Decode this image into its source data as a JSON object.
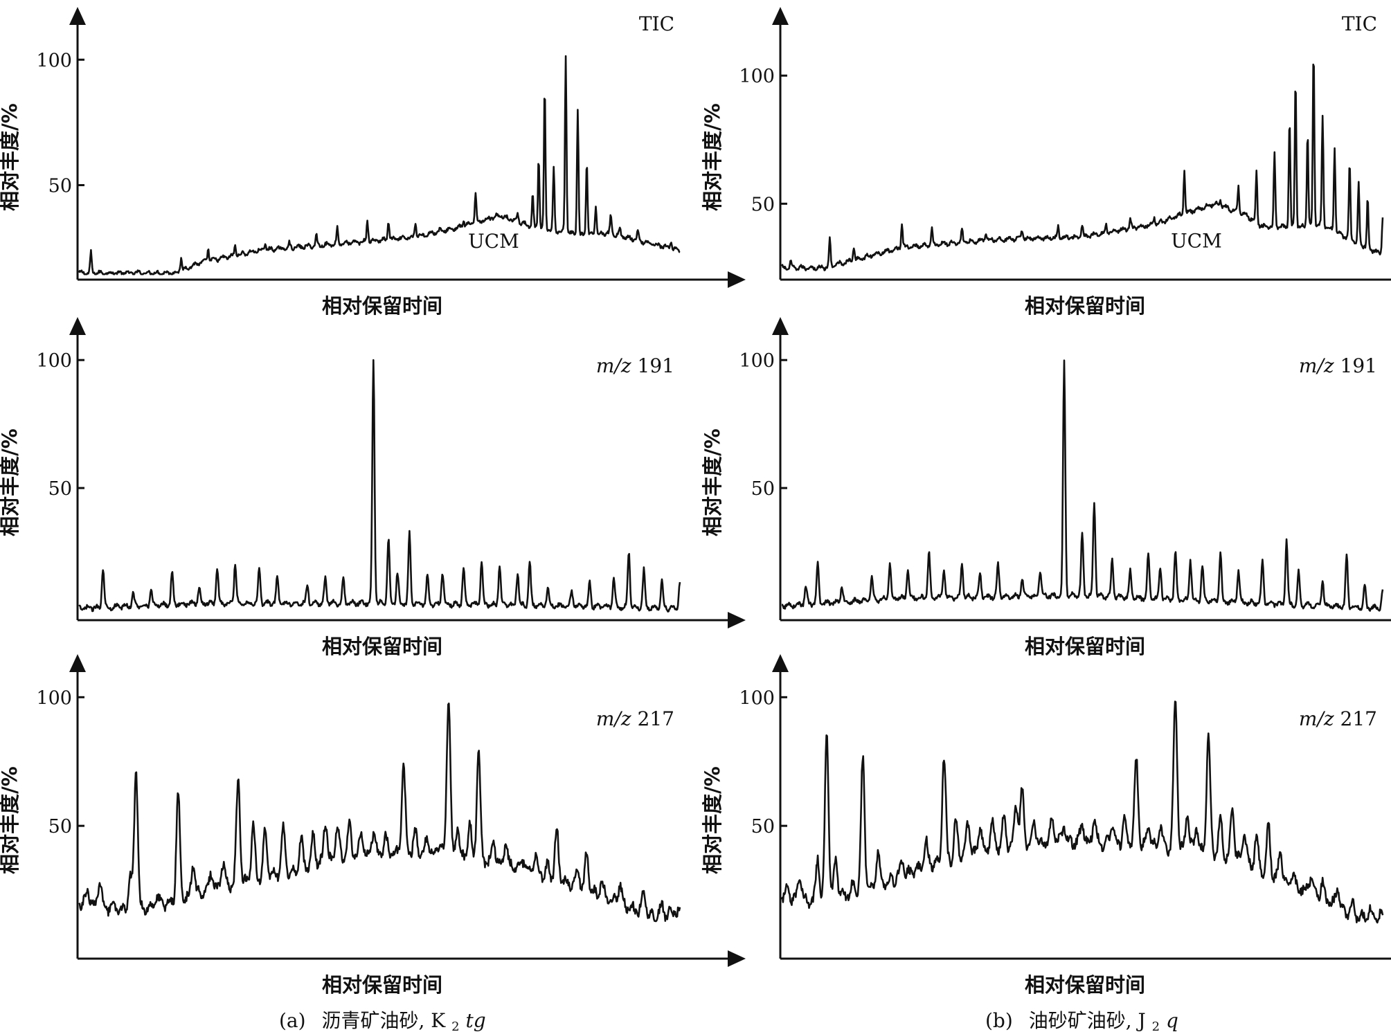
{
  "figure": {
    "captions": {
      "left": {
        "label": "(a)",
        "text": "沥青矿油砂, ",
        "formula_main": "K",
        "formula_sub": "2",
        "formula_italic": "tg"
      },
      "right": {
        "label": "(b)",
        "text": "油砂矿油砂, ",
        "formula_main": "J",
        "formula_sub": "2",
        "formula_italic": "q"
      }
    }
  },
  "chart_data": [
    {
      "id": "a-tic",
      "type": "line",
      "column": 0,
      "row": 0,
      "corner_label": "TIC",
      "corner_italic": "",
      "ylabel": "相对丰度/%",
      "xlabel": "相对保留时间",
      "yticks": [
        50,
        100
      ],
      "ylim": [
        14,
        110
      ],
      "baseline": [
        [
          0,
          15
        ],
        [
          0.16,
          15
        ],
        [
          0.2,
          19
        ],
        [
          0.3,
          24
        ],
        [
          0.45,
          27
        ],
        [
          0.55,
          29
        ],
        [
          0.63,
          33
        ],
        [
          0.7,
          38
        ],
        [
          0.76,
          33
        ],
        [
          0.84,
          30
        ],
        [
          0.88,
          31
        ],
        [
          0.93,
          28
        ],
        [
          1.0,
          24
        ]
      ],
      "peaks": [
        [
          0.02,
          23
        ],
        [
          0.17,
          21
        ],
        [
          0.215,
          25
        ],
        [
          0.26,
          26
        ],
        [
          0.31,
          27
        ],
        [
          0.35,
          27
        ],
        [
          0.395,
          30
        ],
        [
          0.43,
          33
        ],
        [
          0.48,
          36
        ],
        [
          0.515,
          36
        ],
        [
          0.56,
          35
        ],
        [
          0.6,
          32
        ],
        [
          0.64,
          36
        ],
        [
          0.66,
          47
        ],
        [
          0.705,
          37
        ],
        [
          0.73,
          39
        ],
        [
          0.755,
          46
        ],
        [
          0.765,
          61
        ],
        [
          0.775,
          89
        ],
        [
          0.79,
          57
        ],
        [
          0.81,
          102
        ],
        [
          0.83,
          80
        ],
        [
          0.845,
          60
        ],
        [
          0.86,
          42
        ],
        [
          0.885,
          38
        ],
        [
          0.9,
          33
        ],
        [
          0.93,
          32
        ],
        [
          0.985,
          28
        ]
      ],
      "annotation": "UCM",
      "annotation_x": 0.69,
      "annotation_y": 25
    },
    {
      "id": "b-tic",
      "type": "line",
      "column": 1,
      "row": 0,
      "corner_label": "TIC",
      "corner_italic": "",
      "ylabel": "相对丰度/%",
      "xlabel": "相对保留时间",
      "yticks": [
        50,
        100
      ],
      "ylim": [
        22,
        116
      ],
      "baseline": [
        [
          0,
          25
        ],
        [
          0.07,
          25
        ],
        [
          0.12,
          28
        ],
        [
          0.2,
          33
        ],
        [
          0.35,
          36
        ],
        [
          0.5,
          37
        ],
        [
          0.62,
          42
        ],
        [
          0.68,
          47
        ],
        [
          0.72,
          50
        ],
        [
          0.77,
          46
        ],
        [
          0.8,
          41
        ],
        [
          0.86,
          41
        ],
        [
          0.9,
          42
        ],
        [
          0.93,
          38
        ],
        [
          1.0,
          30
        ]
      ],
      "peaks": [
        [
          0.015,
          27
        ],
        [
          0.08,
          36
        ],
        [
          0.12,
          33
        ],
        [
          0.2,
          42
        ],
        [
          0.25,
          40
        ],
        [
          0.3,
          40
        ],
        [
          0.34,
          39
        ],
        [
          0.4,
          40
        ],
        [
          0.46,
          41
        ],
        [
          0.5,
          42
        ],
        [
          0.54,
          42
        ],
        [
          0.58,
          44
        ],
        [
          0.62,
          45
        ],
        [
          0.67,
          63
        ],
        [
          0.7,
          48
        ],
        [
          0.73,
          52
        ],
        [
          0.76,
          57
        ],
        [
          0.79,
          63
        ],
        [
          0.82,
          70
        ],
        [
          0.845,
          83
        ],
        [
          0.855,
          99
        ],
        [
          0.875,
          78
        ],
        [
          0.885,
          110
        ],
        [
          0.9,
          84
        ],
        [
          0.92,
          72
        ],
        [
          0.945,
          66
        ],
        [
          0.96,
          58
        ],
        [
          0.975,
          52
        ],
        [
          1.0,
          45
        ]
      ],
      "annotation": "UCM",
      "annotation_x": 0.69,
      "annotation_y": 33
    },
    {
      "id": "a-191",
      "type": "line",
      "column": 0,
      "row": 1,
      "corner_label": " 191",
      "corner_italic": "m/z",
      "ylabel": "相对丰度/%",
      "xlabel": "相对保留时间",
      "yticks": [
        50,
        100
      ],
      "ylim": [
        0,
        106
      ],
      "baseline": [
        [
          0,
          3
        ],
        [
          0.2,
          5
        ],
        [
          0.5,
          5
        ],
        [
          0.8,
          4
        ],
        [
          1.0,
          3
        ]
      ],
      "peaks": [
        [
          0.04,
          19
        ],
        [
          0.09,
          9
        ],
        [
          0.12,
          10
        ],
        [
          0.155,
          17
        ],
        [
          0.2,
          11
        ],
        [
          0.23,
          19
        ],
        [
          0.26,
          21
        ],
        [
          0.3,
          19
        ],
        [
          0.33,
          15
        ],
        [
          0.38,
          12
        ],
        [
          0.41,
          15
        ],
        [
          0.44,
          14
        ],
        [
          0.49,
          100
        ],
        [
          0.515,
          30
        ],
        [
          0.53,
          17
        ],
        [
          0.55,
          32
        ],
        [
          0.58,
          16
        ],
        [
          0.605,
          17
        ],
        [
          0.64,
          19
        ],
        [
          0.67,
          21
        ],
        [
          0.7,
          20
        ],
        [
          0.73,
          17
        ],
        [
          0.75,
          21
        ],
        [
          0.78,
          11
        ],
        [
          0.82,
          10
        ],
        [
          0.85,
          13
        ],
        [
          0.89,
          15
        ],
        [
          0.915,
          25
        ],
        [
          0.94,
          18
        ],
        [
          0.97,
          14
        ],
        [
          1.0,
          14
        ]
      ],
      "annotation": "",
      "annotation_x": 0,
      "annotation_y": 0
    },
    {
      "id": "b-191",
      "type": "line",
      "column": 1,
      "row": 1,
      "corner_label": " 191",
      "corner_italic": "m/z",
      "ylabel": "相对丰度/%",
      "xlabel": "相对保留时间",
      "yticks": [
        50,
        100
      ],
      "ylim": [
        0,
        106
      ],
      "baseline": [
        [
          0,
          4
        ],
        [
          0.2,
          7
        ],
        [
          0.5,
          8
        ],
        [
          0.8,
          5
        ],
        [
          1.0,
          3
        ]
      ],
      "peaks": [
        [
          0.04,
          12
        ],
        [
          0.06,
          20
        ],
        [
          0.1,
          12
        ],
        [
          0.15,
          15
        ],
        [
          0.18,
          21
        ],
        [
          0.21,
          18
        ],
        [
          0.245,
          25
        ],
        [
          0.27,
          18
        ],
        [
          0.3,
          20
        ],
        [
          0.33,
          17
        ],
        [
          0.36,
          20
        ],
        [
          0.4,
          15
        ],
        [
          0.43,
          18
        ],
        [
          0.47,
          99
        ],
        [
          0.5,
          32
        ],
        [
          0.52,
          45
        ],
        [
          0.55,
          22
        ],
        [
          0.58,
          18
        ],
        [
          0.61,
          24
        ],
        [
          0.63,
          19
        ],
        [
          0.655,
          25
        ],
        [
          0.68,
          22
        ],
        [
          0.7,
          20
        ],
        [
          0.73,
          25
        ],
        [
          0.76,
          18
        ],
        [
          0.8,
          22
        ],
        [
          0.84,
          30
        ],
        [
          0.86,
          17
        ],
        [
          0.9,
          14
        ],
        [
          0.94,
          24
        ],
        [
          0.97,
          12
        ],
        [
          1.0,
          10
        ]
      ],
      "annotation": "",
      "annotation_x": 0,
      "annotation_y": 0
    },
    {
      "id": "a-217",
      "type": "line",
      "column": 0,
      "row": 2,
      "corner_label": " 217",
      "corner_italic": "m/z",
      "ylabel": "相对丰度/%",
      "xlabel": "相对保留时间",
      "yticks": [
        50,
        100
      ],
      "ylim": [
        0,
        106
      ],
      "baseline": [
        [
          0,
          20
        ],
        [
          0.08,
          17
        ],
        [
          0.15,
          20
        ],
        [
          0.25,
          27
        ],
        [
          0.35,
          32
        ],
        [
          0.45,
          38
        ],
        [
          0.55,
          40
        ],
        [
          0.62,
          38
        ],
        [
          0.68,
          36
        ],
        [
          0.75,
          33
        ],
        [
          0.82,
          27
        ],
        [
          0.9,
          20
        ],
        [
          0.95,
          15
        ],
        [
          1.0,
          16
        ]
      ],
      "peaks": [
        [
          0.015,
          25
        ],
        [
          0.035,
          28
        ],
        [
          0.085,
          30
        ],
        [
          0.095,
          72
        ],
        [
          0.13,
          23
        ],
        [
          0.165,
          62
        ],
        [
          0.19,
          35
        ],
        [
          0.22,
          32
        ],
        [
          0.24,
          36
        ],
        [
          0.265,
          68
        ],
        [
          0.29,
          50
        ],
        [
          0.31,
          48
        ],
        [
          0.34,
          49
        ],
        [
          0.37,
          45
        ],
        [
          0.39,
          47
        ],
        [
          0.41,
          52
        ],
        [
          0.43,
          50
        ],
        [
          0.45,
          51
        ],
        [
          0.47,
          47
        ],
        [
          0.49,
          48
        ],
        [
          0.51,
          46
        ],
        [
          0.54,
          73
        ],
        [
          0.56,
          47
        ],
        [
          0.58,
          46
        ],
        [
          0.6,
          44
        ],
        [
          0.615,
          100
        ],
        [
          0.63,
          50
        ],
        [
          0.65,
          51
        ],
        [
          0.665,
          79
        ],
        [
          0.69,
          45
        ],
        [
          0.71,
          43
        ],
        [
          0.74,
          37
        ],
        [
          0.76,
          38
        ],
        [
          0.78,
          34
        ],
        [
          0.795,
          48
        ],
        [
          0.83,
          33
        ],
        [
          0.845,
          39
        ],
        [
          0.87,
          28
        ],
        [
          0.9,
          27
        ],
        [
          0.94,
          25
        ],
        [
          0.97,
          19
        ],
        [
          0.99,
          17
        ]
      ],
      "annotation": "",
      "annotation_x": 0,
      "annotation_y": 0
    },
    {
      "id": "b-217",
      "type": "line",
      "column": 1,
      "row": 2,
      "corner_label": " 217",
      "corner_italic": "m/z",
      "ylabel": "相对丰度/%",
      "xlabel": "相对保留时间",
      "yticks": [
        50,
        100
      ],
      "ylim": [
        0,
        106
      ],
      "baseline": [
        [
          0,
          22
        ],
        [
          0.06,
          20
        ],
        [
          0.15,
          26
        ],
        [
          0.25,
          35
        ],
        [
          0.35,
          41
        ],
        [
          0.45,
          44
        ],
        [
          0.55,
          43
        ],
        [
          0.62,
          42
        ],
        [
          0.7,
          40
        ],
        [
          0.76,
          37
        ],
        [
          0.82,
          30
        ],
        [
          0.9,
          22
        ],
        [
          0.95,
          15
        ],
        [
          1.0,
          14
        ]
      ],
      "peaks": [
        [
          0.01,
          27
        ],
        [
          0.03,
          32
        ],
        [
          0.06,
          38
        ],
        [
          0.075,
          87
        ],
        [
          0.09,
          37
        ],
        [
          0.12,
          28
        ],
        [
          0.135,
          76
        ],
        [
          0.16,
          40
        ],
        [
          0.2,
          37
        ],
        [
          0.24,
          44
        ],
        [
          0.27,
          77
        ],
        [
          0.29,
          52
        ],
        [
          0.31,
          51
        ],
        [
          0.33,
          50
        ],
        [
          0.35,
          52
        ],
        [
          0.37,
          53
        ],
        [
          0.39,
          59
        ],
        [
          0.4,
          64
        ],
        [
          0.42,
          51
        ],
        [
          0.45,
          53
        ],
        [
          0.47,
          50
        ],
        [
          0.5,
          51
        ],
        [
          0.52,
          52
        ],
        [
          0.55,
          50
        ],
        [
          0.57,
          52
        ],
        [
          0.59,
          76
        ],
        [
          0.61,
          50
        ],
        [
          0.63,
          50
        ],
        [
          0.655,
          100
        ],
        [
          0.675,
          55
        ],
        [
          0.69,
          50
        ],
        [
          0.71,
          86
        ],
        [
          0.73,
          52
        ],
        [
          0.75,
          57
        ],
        [
          0.77,
          48
        ],
        [
          0.79,
          46
        ],
        [
          0.81,
          50
        ],
        [
          0.83,
          40
        ],
        [
          0.85,
          31
        ],
        [
          0.88,
          30
        ],
        [
          0.9,
          28
        ],
        [
          0.925,
          26
        ],
        [
          0.95,
          19
        ],
        [
          0.98,
          17
        ],
        [
          1.0,
          16
        ]
      ],
      "annotation": "",
      "annotation_x": 0,
      "annotation_y": 0
    }
  ]
}
